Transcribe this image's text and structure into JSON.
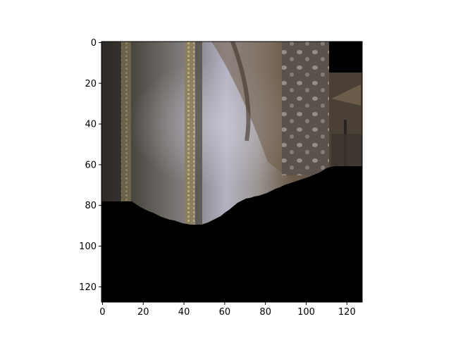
{
  "figure": {
    "image": {
      "description_icon": "game-frame-image",
      "pixel_grid": [
        128,
        128
      ],
      "palette": {
        "frame_bg": "#000000",
        "wall_dark": "#3d3a36",
        "wall_mid": "#6b6660",
        "wall_light": "#b7b4c4",
        "pillar_gold": "#9a8a5e",
        "brown": "#6e5a45",
        "spot": "#a59a92"
      }
    },
    "x_axis": {
      "ticks": [
        "0",
        "20",
        "40",
        "60",
        "80",
        "100",
        "120"
      ],
      "range": [
        0,
        128
      ]
    },
    "y_axis": {
      "ticks": [
        "0",
        "20",
        "40",
        "60",
        "80",
        "100",
        "120"
      ],
      "range": [
        0,
        128
      ]
    }
  }
}
